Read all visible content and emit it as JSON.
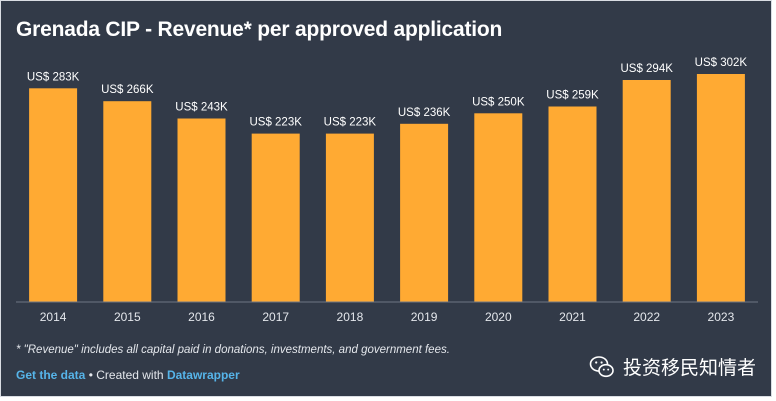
{
  "chart_data": {
    "type": "bar",
    "title": "Grenada CIP - Revenue* per approved application",
    "categories": [
      "2014",
      "2015",
      "2016",
      "2017",
      "2018",
      "2019",
      "2020",
      "2021",
      "2022",
      "2023"
    ],
    "values": [
      283,
      266,
      243,
      223,
      223,
      236,
      250,
      259,
      294,
      302
    ],
    "value_labels": [
      "US$ 283K",
      "US$ 266K",
      "US$ 243K",
      "US$ 223K",
      "US$ 223K",
      "US$ 236K",
      "US$ 250K",
      "US$ 259K",
      "US$ 294K",
      "US$ 302K"
    ],
    "xlabel": "",
    "ylabel": "",
    "ylim": [
      0,
      302
    ],
    "grid": false,
    "bar_color": "#ffaa33"
  },
  "note": "* \"Revenue\" includes all capital paid in donations, investments, and government fees.",
  "footer": {
    "get_data_label": "Get the data",
    "separator": " • Created with ",
    "datawrapper_label": "Datawrapper"
  },
  "watermark": {
    "icon": "wechat-icon",
    "text": "投资移民知情者"
  },
  "colors": {
    "background": "#323a48",
    "link": "#56b4e9"
  }
}
